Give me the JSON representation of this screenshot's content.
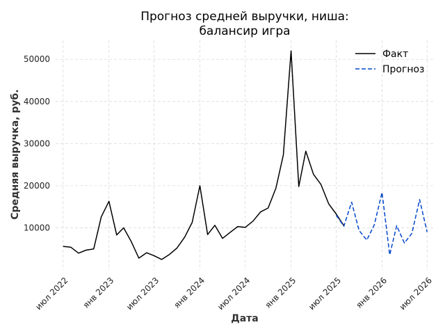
{
  "chart_data": {
    "type": "line",
    "title_line1": "Прогноз средней выручки, ниша:",
    "title_line2": "балансир игра",
    "xlabel": "Дата",
    "ylabel": "Средняя выручка, руб.",
    "x_range": [
      "2022-06-01",
      "2026-07-31"
    ],
    "ylim": [
      0,
      54500
    ],
    "y_ticks": [
      10000,
      20000,
      30000,
      40000,
      50000
    ],
    "y_tick_labels": [
      "10000",
      "20000",
      "30000",
      "40000",
      "50000"
    ],
    "x_ticks": [
      {
        "date": "2022-07-01",
        "label": "июл 2022"
      },
      {
        "date": "2023-01-01",
        "label": "янв 2023"
      },
      {
        "date": "2023-07-01",
        "label": "июл 2023"
      },
      {
        "date": "2024-01-01",
        "label": "янв 2024"
      },
      {
        "date": "2024-07-01",
        "label": "июл 2024"
      },
      {
        "date": "2025-01-01",
        "label": "янв 2025"
      },
      {
        "date": "2025-07-01",
        "label": "июл 2025"
      },
      {
        "date": "2026-01-01",
        "label": "янв 2026"
      },
      {
        "date": "2026-07-01",
        "label": "июл 2026"
      }
    ],
    "grid": true,
    "legend_position": "top-right",
    "series": [
      {
        "name": "Факт",
        "color": "#000000",
        "style": "solid",
        "points": [
          {
            "x": "2022-07-01",
            "y": 5600
          },
          {
            "x": "2022-08-01",
            "y": 5400
          },
          {
            "x": "2022-09-01",
            "y": 4000
          },
          {
            "x": "2022-10-01",
            "y": 4700
          },
          {
            "x": "2022-11-01",
            "y": 5000
          },
          {
            "x": "2022-12-01",
            "y": 12600
          },
          {
            "x": "2023-01-01",
            "y": 16300
          },
          {
            "x": "2023-02-01",
            "y": 8300
          },
          {
            "x": "2023-03-01",
            "y": 10000
          },
          {
            "x": "2023-04-01",
            "y": 6700
          },
          {
            "x": "2023-05-01",
            "y": 2800
          },
          {
            "x": "2023-06-01",
            "y": 4100
          },
          {
            "x": "2023-07-01",
            "y": 3400
          },
          {
            "x": "2023-08-01",
            "y": 2500
          },
          {
            "x": "2023-09-01",
            "y": 3700
          },
          {
            "x": "2023-10-01",
            "y": 5200
          },
          {
            "x": "2023-11-01",
            "y": 7800
          },
          {
            "x": "2023-12-01",
            "y": 11300
          },
          {
            "x": "2024-01-01",
            "y": 20000
          },
          {
            "x": "2024-02-01",
            "y": 8400
          },
          {
            "x": "2024-03-01",
            "y": 10600
          },
          {
            "x": "2024-04-01",
            "y": 7500
          },
          {
            "x": "2024-05-01",
            "y": 8900
          },
          {
            "x": "2024-06-01",
            "y": 10300
          },
          {
            "x": "2024-07-01",
            "y": 10100
          },
          {
            "x": "2024-08-01",
            "y": 11600
          },
          {
            "x": "2024-09-01",
            "y": 13800
          },
          {
            "x": "2024-10-01",
            "y": 14700
          },
          {
            "x": "2024-11-01",
            "y": 19400
          },
          {
            "x": "2024-12-01",
            "y": 27300
          },
          {
            "x": "2025-01-01",
            "y": 52000
          },
          {
            "x": "2025-02-01",
            "y": 19800
          },
          {
            "x": "2025-03-01",
            "y": 28200
          },
          {
            "x": "2025-04-01",
            "y": 22700
          },
          {
            "x": "2025-05-01",
            "y": 20300
          },
          {
            "x": "2025-06-01",
            "y": 15700
          },
          {
            "x": "2025-07-01",
            "y": 13300
          },
          {
            "x": "2025-08-01",
            "y": 10500
          }
        ]
      },
      {
        "name": "Прогноз",
        "color": "#0044cc",
        "style": "dashed",
        "points": [
          {
            "x": "2025-07-01",
            "y": 13000
          },
          {
            "x": "2025-08-01",
            "y": 10400
          },
          {
            "x": "2025-09-01",
            "y": 16100
          },
          {
            "x": "2025-10-01",
            "y": 9400
          },
          {
            "x": "2025-11-01",
            "y": 7100
          },
          {
            "x": "2025-12-01",
            "y": 10700
          },
          {
            "x": "2026-01-01",
            "y": 18400
          },
          {
            "x": "2026-02-01",
            "y": 3600
          },
          {
            "x": "2026-03-01",
            "y": 10500
          },
          {
            "x": "2026-04-01",
            "y": 6400
          },
          {
            "x": "2026-05-01",
            "y": 8700
          },
          {
            "x": "2026-06-01",
            "y": 16700
          },
          {
            "x": "2026-07-01",
            "y": 9000
          }
        ]
      }
    ]
  }
}
